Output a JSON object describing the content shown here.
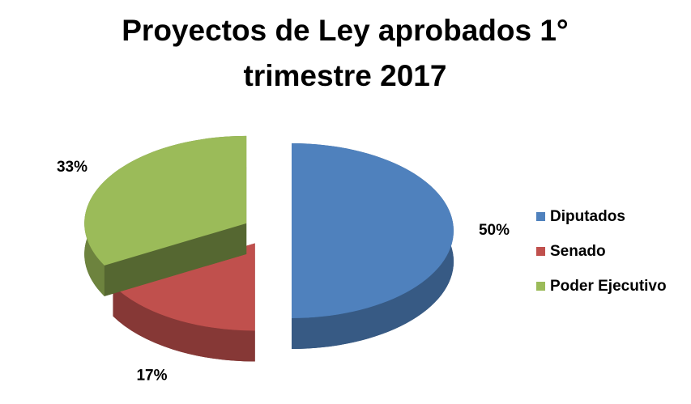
{
  "chart_data": {
    "type": "pie",
    "title": "Proyectos de Ley aprobados 1° trimestre 2017",
    "series": [
      {
        "name": "Diputados",
        "color": "#4f81bd",
        "values": [
          50
        ],
        "value_labels": [
          "50%"
        ]
      },
      {
        "name": "Senado",
        "color": "#c0504d",
        "values": [
          17
        ],
        "value_labels": [
          "17%"
        ]
      },
      {
        "name": "Poder Ejecutivo",
        "color": "#9bbb59",
        "values": [
          33
        ],
        "value_labels": [
          "33%"
        ]
      }
    ],
    "legend": "right"
  }
}
